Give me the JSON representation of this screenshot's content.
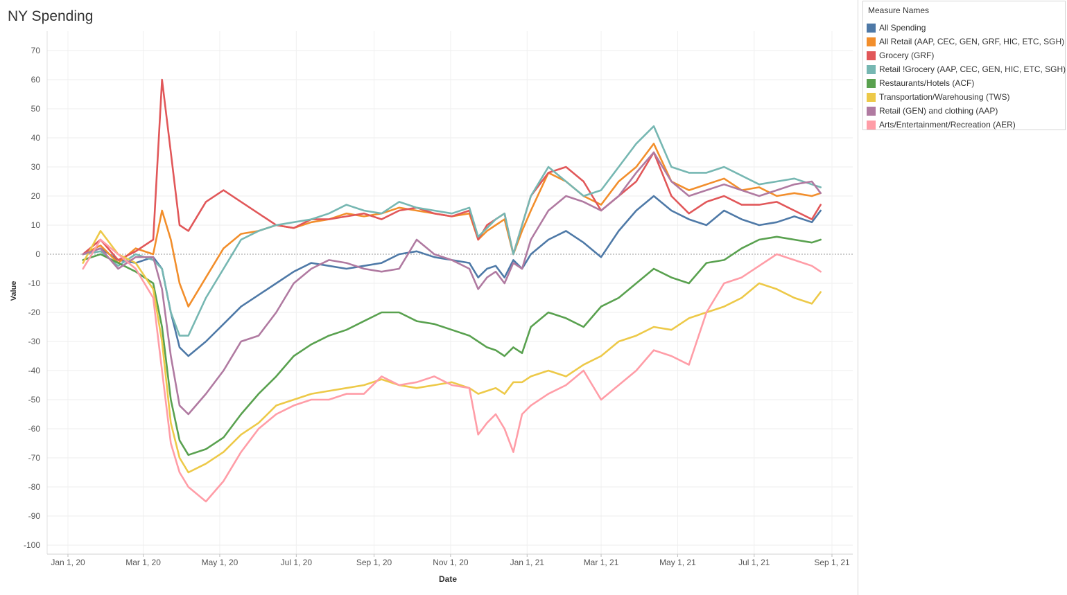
{
  "title": "NY Spending",
  "legend": {
    "title": "Measure Names"
  },
  "chart_data": {
    "type": "line",
    "xlabel": "Date",
    "ylabel": "Value",
    "ylim": [
      -100,
      70
    ],
    "y_ticks": [
      70,
      60,
      50,
      40,
      30,
      20,
      10,
      0,
      -10,
      -20,
      -30,
      -40,
      -50,
      -60,
      -70,
      -80,
      -90,
      -100
    ],
    "x_ticks": [
      "Jan 1, 20",
      "Mar 1, 20",
      "May 1, 20",
      "Jul 1, 20",
      "Sep 1, 20",
      "Nov 1, 20",
      "Jan 1, 21",
      "Mar 1, 21",
      "May 1, 21",
      "Jul 1, 21",
      "Sep 1, 21"
    ],
    "x_tick_dates": [
      "2020-01-01",
      "2020-03-01",
      "2020-05-01",
      "2020-07-01",
      "2020-09-01",
      "2020-11-01",
      "2021-01-01",
      "2021-03-01",
      "2021-05-01",
      "2021-07-01",
      "2021-09-01"
    ],
    "xlim": [
      "2019-12-28",
      "2021-09-05"
    ],
    "zero_line": true,
    "grid": true,
    "legend_position": "right",
    "dates": [
      "2020-01-13",
      "2020-01-27",
      "2020-02-10",
      "2020-02-24",
      "2020-03-09",
      "2020-03-16",
      "2020-03-23",
      "2020-03-30",
      "2020-04-06",
      "2020-04-20",
      "2020-05-04",
      "2020-05-18",
      "2020-06-01",
      "2020-06-15",
      "2020-06-29",
      "2020-07-13",
      "2020-07-27",
      "2020-08-10",
      "2020-08-24",
      "2020-09-07",
      "2020-09-21",
      "2020-10-05",
      "2020-10-19",
      "2020-11-02",
      "2020-11-16",
      "2020-11-23",
      "2020-11-30",
      "2020-12-07",
      "2020-12-14",
      "2020-12-21",
      "2020-12-28",
      "2021-01-04",
      "2021-01-18",
      "2021-02-01",
      "2021-02-15",
      "2021-03-01",
      "2021-03-15",
      "2021-03-29",
      "2021-04-12",
      "2021-04-26",
      "2021-05-10",
      "2021-05-24",
      "2021-06-07",
      "2021-06-21",
      "2021-07-05",
      "2021-07-19",
      "2021-08-02",
      "2021-08-16",
      "2021-08-23"
    ],
    "series": [
      {
        "name": "All Spending",
        "color": "#4e79a7",
        "values": [
          0,
          2,
          -2,
          -3,
          -1,
          -5,
          -20,
          -32,
          -35,
          -30,
          -24,
          -18,
          -14,
          -10,
          -6,
          -3,
          -4,
          -5,
          -4,
          -3,
          0,
          1,
          -1,
          -2,
          -3,
          -8,
          -5,
          -4,
          -8,
          -2,
          -5,
          0,
          5,
          8,
          4,
          -1,
          8,
          15,
          20,
          15,
          12,
          10,
          15,
          12,
          10,
          11,
          13,
          11,
          15
        ]
      },
      {
        "name": "All Retail (AAP, CEC, GEN, GRF, HIC, ETC, SGH)",
        "color": "#f28e2b",
        "values": [
          0,
          3,
          -3,
          2,
          0,
          15,
          5,
          -10,
          -18,
          -8,
          2,
          7,
          8,
          10,
          9,
          11,
          12,
          14,
          13,
          14,
          16,
          15,
          14,
          13,
          14,
          5,
          8,
          10,
          12,
          0,
          8,
          15,
          28,
          25,
          20,
          17,
          25,
          30,
          38,
          25,
          22,
          24,
          26,
          22,
          23,
          20,
          21,
          20,
          21
        ]
      },
      {
        "name": "Grocery (GRF)",
        "color": "#e15759",
        "values": [
          0,
          5,
          -2,
          1,
          5,
          60,
          35,
          10,
          8,
          18,
          22,
          18,
          14,
          10,
          9,
          12,
          12,
          13,
          14,
          12,
          15,
          16,
          14,
          13,
          15,
          5,
          10,
          12,
          14,
          0,
          10,
          20,
          28,
          30,
          25,
          15,
          20,
          25,
          35,
          20,
          14,
          18,
          20,
          17,
          17,
          18,
          15,
          12,
          17
        ]
      },
      {
        "name": "Retail !Grocery (AAP, CEC, GEN, HIC, ETC, SGH)",
        "color": "#76b7b2",
        "values": [
          0,
          1,
          -4,
          0,
          -2,
          -5,
          -20,
          -28,
          -28,
          -15,
          -5,
          5,
          8,
          10,
          11,
          12,
          14,
          17,
          15,
          14,
          18,
          16,
          15,
          14,
          16,
          6,
          9,
          12,
          14,
          0,
          10,
          20,
          30,
          25,
          20,
          22,
          30,
          38,
          44,
          30,
          28,
          28,
          30,
          27,
          24,
          25,
          26,
          24,
          23
        ]
      },
      {
        "name": "Restaurants/Hotels (ACF)",
        "color": "#59a14f",
        "values": [
          -2,
          0,
          -3,
          -6,
          -10,
          -25,
          -50,
          -64,
          -69,
          -67,
          -63,
          -55,
          -48,
          -42,
          -35,
          -31,
          -28,
          -26,
          -23,
          -20,
          -20,
          -23,
          -24,
          -26,
          -28,
          -30,
          -32,
          -33,
          -35,
          -32,
          -34,
          -25,
          -20,
          -22,
          -25,
          -18,
          -15,
          -10,
          -5,
          -8,
          -10,
          -3,
          -2,
          2,
          5,
          6,
          5,
          4,
          5
        ]
      },
      {
        "name": "Transportation/Warehousing (TWS)",
        "color": "#edc948",
        "values": [
          -3,
          8,
          0,
          -3,
          -12,
          -30,
          -58,
          -70,
          -75,
          -72,
          -68,
          -62,
          -58,
          -52,
          -50,
          -48,
          -47,
          -46,
          -45,
          -43,
          -45,
          -46,
          -45,
          -44,
          -46,
          -48,
          -47,
          -46,
          -48,
          -44,
          -44,
          -42,
          -40,
          -42,
          -38,
          -35,
          -30,
          -28,
          -25,
          -26,
          -22,
          -20,
          -18,
          -15,
          -10,
          -12,
          -15,
          -17,
          -13
        ]
      },
      {
        "name": "Retail (GEN) and clothing (AAP)",
        "color": "#b07aa1",
        "values": [
          0,
          2,
          -5,
          -1,
          -1,
          -12,
          -35,
          -52,
          -55,
          -48,
          -40,
          -30,
          -28,
          -20,
          -10,
          -5,
          -2,
          -3,
          -5,
          -6,
          -5,
          5,
          0,
          -2,
          -5,
          -12,
          -8,
          -6,
          -10,
          -3,
          -5,
          5,
          15,
          20,
          18,
          15,
          20,
          28,
          35,
          25,
          20,
          22,
          24,
          22,
          20,
          22,
          24,
          25,
          21
        ]
      },
      {
        "name": "Arts/Entertainment/Recreation (AER)",
        "color": "#ff9da7",
        "values": [
          -5,
          5,
          0,
          -5,
          -15,
          -40,
          -65,
          -75,
          -80,
          -85,
          -78,
          -68,
          -60,
          -55,
          -52,
          -50,
          -50,
          -48,
          -48,
          -42,
          -45,
          -44,
          -42,
          -45,
          -46,
          -62,
          -58,
          -55,
          -60,
          -68,
          -55,
          -52,
          -48,
          -45,
          -40,
          -50,
          -45,
          -40,
          -33,
          -35,
          -38,
          -20,
          -10,
          -8,
          -4,
          0,
          -2,
          -4,
          -6
        ]
      }
    ]
  }
}
